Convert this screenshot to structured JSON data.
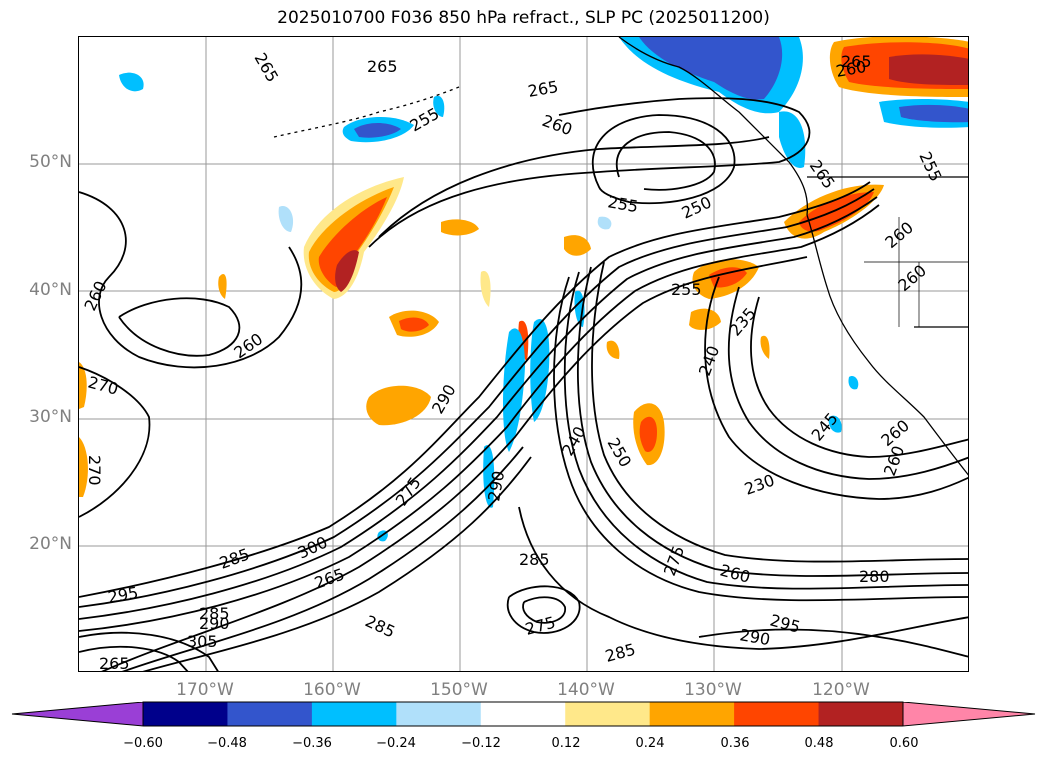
{
  "title": "2025010700 F036 850 hPa refract., SLP PC (2025011200)",
  "lat_labels": [
    "50°N",
    "40°N",
    "30°N",
    "20°N"
  ],
  "lon_labels": [
    "170°W",
    "160°W",
    "150°W",
    "140°W",
    "130°W",
    "120°W"
  ],
  "colorbar": {
    "ticks": [
      "−0.60",
      "−0.48",
      "−0.36",
      "−0.24",
      "−0.12",
      "0.12",
      "0.24",
      "0.36",
      "0.48",
      "0.60"
    ],
    "colors": [
      "#9a3fd6",
      "#00008b",
      "#3355cc",
      "#00bfff",
      "#b0e0fa",
      "#ffffff",
      "#ffe88a",
      "#ffa500",
      "#ff4500",
      "#b22222",
      "#ff85a8"
    ]
  },
  "contour_labels": [
    "265",
    "265",
    "265",
    "260",
    "255",
    "255",
    "250",
    "260",
    "265",
    "255",
    "265",
    "260",
    "260",
    "255",
    "260",
    "260",
    "235",
    "240",
    "270",
    "270",
    "290",
    "290",
    "240",
    "250",
    "230",
    "245",
    "260",
    "260",
    "285",
    "300",
    "265",
    "275",
    "285",
    "275",
    "260",
    "280",
    "295",
    "290",
    "295",
    "285",
    "305",
    "290",
    "285",
    "275",
    "285",
    "265"
  ]
}
